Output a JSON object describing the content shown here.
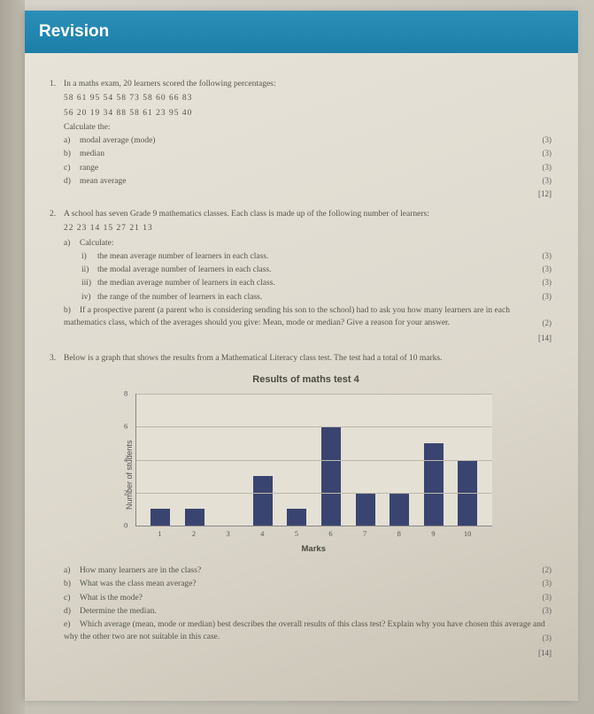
{
  "header": {
    "title": "Revision"
  },
  "q1": {
    "num": "1.",
    "intro": "In a maths exam, 20 learners scored the following percentages:",
    "data1": "58   61   95   54   58   73   58   60   66   83",
    "data2": "56   20   19   34   88   58   61   23   95   40",
    "calc": "Calculate the:",
    "a": "modal average (mode)",
    "b": "median",
    "c": "range",
    "d": "mean average",
    "m_a": "(3)",
    "m_b": "(3)",
    "m_c": "(3)",
    "m_d": "(3)",
    "total": "[12]"
  },
  "q2": {
    "num": "2.",
    "intro": "A school has seven Grade 9 mathematics classes. Each class is made up of the following number of learners:",
    "data": "22   23   14   15   27   21   13",
    "a_label": "a)",
    "a_text": "Calculate:",
    "i": "the mean average number of learners in each class.",
    "ii": "the modal average number of learners in each class.",
    "iii": "the median average number of learners in each class.",
    "iv": "the range of the number of learners in each class.",
    "m_i": "(3)",
    "m_ii": "(3)",
    "m_iii": "(3)",
    "m_iv": "(3)",
    "b_label": "b)",
    "b_text": "If a prospective parent (a parent who is considering sending his son to the school) had to ask you how many learners are in each mathematics class, which of the averages should you give: Mean, mode or median? Give a reason for your answer.",
    "m_b": "(2)",
    "total": "[14]"
  },
  "q3": {
    "num": "3.",
    "intro": "Below is a graph that shows the results from a Mathematical Literacy class test. The test had a total of 10 marks.",
    "chart": {
      "type": "bar",
      "title": "Results of maths test 4",
      "ylabel": "Number of students",
      "xlabel": "Marks",
      "categories": [
        "1",
        "2",
        "3",
        "4",
        "5",
        "6",
        "7",
        "8",
        "9",
        "10"
      ],
      "values": [
        1,
        1,
        0,
        3,
        1,
        6,
        2,
        2,
        5,
        4
      ],
      "ylim_max": 8,
      "ytick_step": 2,
      "bar_color": "#3a4470",
      "grid_color": "#bbb8aa",
      "background": "#e4e0d4"
    },
    "a": "How many learners are in the class?",
    "b": "What was the class mean average?",
    "c": "What is the mode?",
    "d": "Determine the median.",
    "e": "Which average (mean, mode or median) best describes the overall results of this class test? Explain why you have chosen this average and why the other two are not suitable in this case.",
    "m_a": "(2)",
    "m_b": "(3)",
    "m_c": "(3)",
    "m_d": "(3)",
    "m_e": "(3)",
    "total": "[14]"
  }
}
